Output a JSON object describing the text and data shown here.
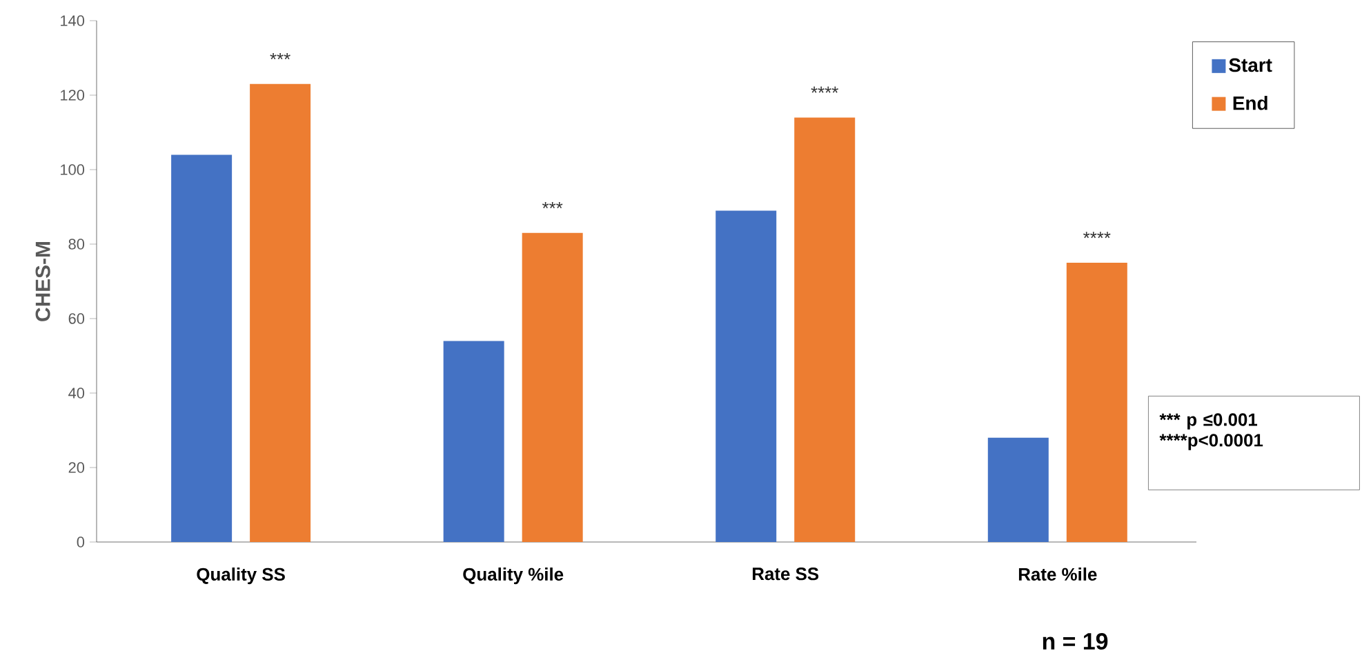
{
  "chart_data": {
    "type": "bar",
    "ylabel": "CHES-M",
    "categories": [
      "Quality SS",
      "Quality %ile",
      "Rate SS",
      "Rate %ile"
    ],
    "series": [
      {
        "name": "Start",
        "color": "#4472c4",
        "values": [
          104,
          54,
          89,
          28
        ]
      },
      {
        "name": "End",
        "color": "#ed7d31",
        "values": [
          123,
          83,
          114,
          75
        ]
      }
    ],
    "ylim": [
      0,
      140
    ],
    "yticks": [
      0,
      20,
      40,
      60,
      80,
      100,
      120,
      140
    ],
    "legend": "top right",
    "annotations": [
      "***",
      "***",
      "****",
      "****",
      "*** p ≤0.001",
      "****p<0.0001",
      "n = 19"
    ]
  }
}
